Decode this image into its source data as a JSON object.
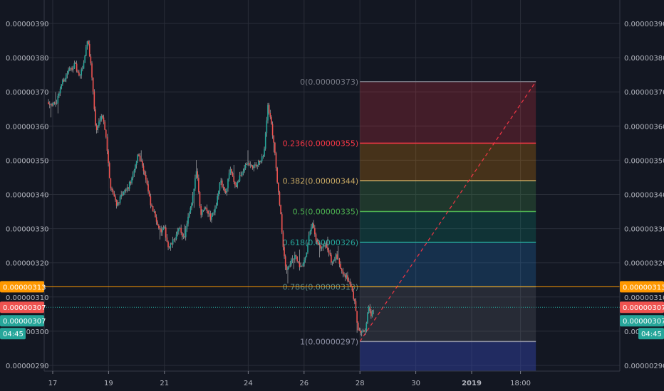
{
  "chart_data": {
    "type": "candlestick",
    "title": "",
    "y_ticks": [
      "0.00000390",
      "0.00000380",
      "0.00000370",
      "0.00000360",
      "0.00000350",
      "0.00000340",
      "0.00000330",
      "0.00000320",
      "0.00000310",
      "0.00000300",
      "0.00000290"
    ],
    "ylim": [
      2.88e-06,
      3.95e-06
    ],
    "x_ticks": [
      {
        "label": "17",
        "day": 0,
        "bold": false
      },
      {
        "label": "19",
        "day": 2,
        "bold": false
      },
      {
        "label": "21",
        "day": 4,
        "bold": false
      },
      {
        "label": "24",
        "day": 7,
        "bold": false
      },
      {
        "label": "26",
        "day": 9,
        "bold": false
      },
      {
        "label": "28",
        "day": 11,
        "bold": false
      },
      {
        "label": "30",
        "day": 13,
        "bold": false
      },
      {
        "label": "2019",
        "day": 15,
        "bold": true
      },
      {
        "label": "18:00",
        "day": 16.75,
        "bold": false
      }
    ],
    "price_path": [
      [
        -0.15,
        3.67e-06
      ],
      [
        0.1,
        3.66e-06
      ],
      [
        0.3,
        3.72e-06
      ],
      [
        0.55,
        3.76e-06
      ],
      [
        0.8,
        3.78e-06
      ],
      [
        0.95,
        3.74e-06
      ],
      [
        1.1,
        3.78e-06
      ],
      [
        1.25,
        3.86e-06
      ],
      [
        1.4,
        3.75e-06
      ],
      [
        1.55,
        3.58e-06
      ],
      [
        1.75,
        3.64e-06
      ],
      [
        1.9,
        3.58e-06
      ],
      [
        2.05,
        3.43e-06
      ],
      [
        2.3,
        3.37e-06
      ],
      [
        2.5,
        3.4e-06
      ],
      [
        2.7,
        3.42e-06
      ],
      [
        2.9,
        3.46e-06
      ],
      [
        3.05,
        3.52e-06
      ],
      [
        3.2,
        3.49e-06
      ],
      [
        3.35,
        3.44e-06
      ],
      [
        3.5,
        3.37e-06
      ],
      [
        3.7,
        3.33e-06
      ],
      [
        3.85,
        3.29e-06
      ],
      [
        4.0,
        3.3e-06
      ],
      [
        4.15,
        3.24e-06
      ],
      [
        4.35,
        3.27e-06
      ],
      [
        4.55,
        3.3e-06
      ],
      [
        4.7,
        3.27e-06
      ],
      [
        4.85,
        3.33e-06
      ],
      [
        5.0,
        3.38e-06
      ],
      [
        5.15,
        3.48e-06
      ],
      [
        5.3,
        3.34e-06
      ],
      [
        5.45,
        3.37e-06
      ],
      [
        5.65,
        3.33e-06
      ],
      [
        5.85,
        3.37e-06
      ],
      [
        6.0,
        3.44e-06
      ],
      [
        6.2,
        3.4e-06
      ],
      [
        6.35,
        3.48e-06
      ],
      [
        6.55,
        3.42e-06
      ],
      [
        6.75,
        3.46e-06
      ],
      [
        6.95,
        3.49e-06
      ],
      [
        7.15,
        3.48e-06
      ],
      [
        7.35,
        3.49e-06
      ],
      [
        7.55,
        3.51e-06
      ],
      [
        7.7,
        3.66e-06
      ],
      [
        7.8,
        3.62e-06
      ],
      [
        7.95,
        3.53e-06
      ],
      [
        8.05,
        3.42e-06
      ],
      [
        8.15,
        3.36e-06
      ],
      [
        8.25,
        3.24e-06
      ],
      [
        8.35,
        3.18e-06
      ],
      [
        8.5,
        3.2e-06
      ],
      [
        8.7,
        3.22e-06
      ],
      [
        8.85,
        3.18e-06
      ],
      [
        9.05,
        3.21e-06
      ],
      [
        9.15,
        3.27e-06
      ],
      [
        9.3,
        3.31e-06
      ],
      [
        9.45,
        3.26e-06
      ],
      [
        9.6,
        3.24e-06
      ],
      [
        9.8,
        3.25e-06
      ],
      [
        10.0,
        3.2e-06
      ],
      [
        10.15,
        3.22e-06
      ],
      [
        10.35,
        3.18e-06
      ],
      [
        10.5,
        3.16e-06
      ],
      [
        10.65,
        3.14e-06
      ],
      [
        10.8,
        3.09e-06
      ],
      [
        10.9,
        3.02e-06
      ],
      [
        11.0,
        2.99e-06
      ],
      [
        11.1,
        3.01e-06
      ],
      [
        11.2,
        3e-06
      ],
      [
        11.3,
        3.08e-06
      ],
      [
        11.4,
        3.04e-06
      ],
      [
        11.5,
        3.07e-06
      ]
    ],
    "fibonacci": {
      "start_day": 11.0,
      "end_day": 17.3,
      "levels": [
        {
          "label": "0(0.00000373)",
          "price": 3.73e-06,
          "color": "#787b86",
          "fill": "rgba(242,54,69,0.22)"
        },
        {
          "label": "0.236(0.00000355)",
          "price": 3.55e-06,
          "color": "#f23645",
          "fill": "rgba(255,152,0,0.22)"
        },
        {
          "label": "0.382(0.00000344)",
          "price": 3.44e-06,
          "color": "#c8a963",
          "fill": "rgba(76,175,80,0.22)"
        },
        {
          "label": "0.5(0.00000335)",
          "price": 3.35e-06,
          "color": "#4caf50",
          "fill": "rgba(8,153,129,0.22)"
        },
        {
          "label": "0.618(0.00000326)",
          "price": 3.26e-06,
          "color": "#26a69a",
          "fill": "rgba(33,150,243,0.2)"
        },
        {
          "label": "0.786(0.00000313)",
          "price": 3.13e-06,
          "color": "#5d8f8a",
          "fill": "rgba(120,123,134,0.2)"
        },
        {
          "label": "1(0.00000297)",
          "price": 2.97e-06,
          "color": "#8c8fa3",
          "fill": "rgba(48,63,159,0.5)"
        }
      ],
      "trend_from": [
        11.0,
        2.97e-06
      ],
      "trend_to": [
        17.3,
        3.73e-06
      ]
    },
    "horizontal_lines": [
      {
        "price": 3.13e-06,
        "color": "#ff9800",
        "style": "solid"
      },
      {
        "price": 3.07e-06,
        "color": "#26a69a",
        "style": "dotted"
      }
    ]
  },
  "price_badges": {
    "orange": {
      "text": "0.00000313",
      "color": "#ff9800",
      "price": 3.13e-06
    },
    "red": {
      "text": "0.00000307",
      "color": "#ef5350",
      "price": 3.07e-06
    },
    "green": {
      "text": "0.00000307",
      "color": "#26a69a",
      "price": 3.07e-06
    },
    "timer": {
      "text": "04:45",
      "color": "#26a69a"
    }
  }
}
